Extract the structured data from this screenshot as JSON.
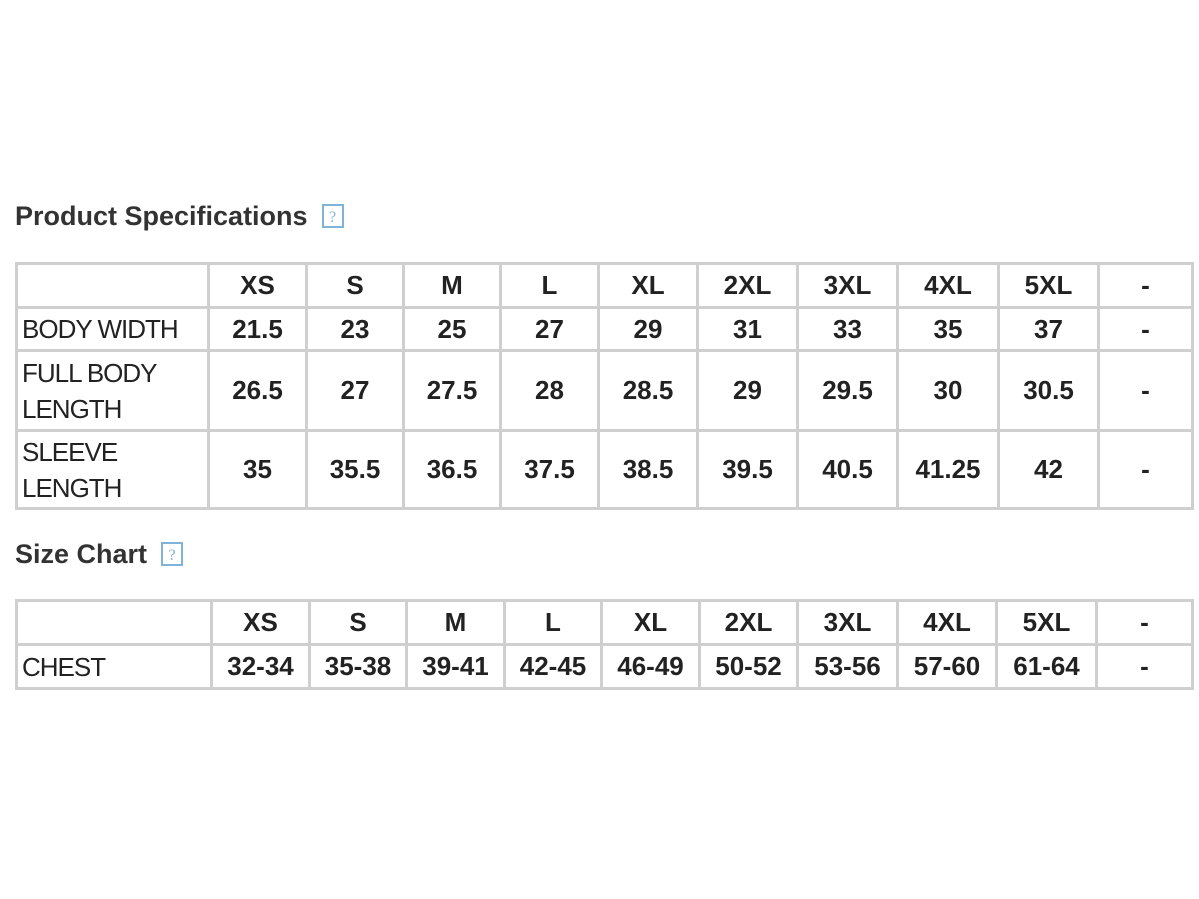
{
  "sections": [
    {
      "title": "Product Specifications",
      "help": "?",
      "table": {
        "header": [
          "XS",
          "S",
          "M",
          "L",
          "XL",
          "2XL",
          "3XL",
          "4XL",
          "5XL",
          "-"
        ],
        "rows": [
          [
            "BODY WIDTH",
            "21.5",
            "23",
            "25",
            "27",
            "29",
            "31",
            "33",
            "35",
            "37",
            "-"
          ],
          [
            "FULL BODY LENGTH",
            "26.5",
            "27",
            "27.5",
            "28",
            "28.5",
            "29",
            "29.5",
            "30",
            "30.5",
            "-"
          ],
          [
            "SLEEVE LENGTH",
            "35",
            "35.5",
            "36.5",
            "37.5",
            "38.5",
            "39.5",
            "40.5",
            "41.25",
            "42",
            "-"
          ]
        ]
      }
    },
    {
      "title": "Size Chart",
      "help": "?",
      "table": {
        "header": [
          "XS",
          "S",
          "M",
          "L",
          "XL",
          "2XL",
          "3XL",
          "4XL",
          "5XL",
          "-"
        ],
        "rows": [
          [
            "CHEST",
            "32-34",
            "35-38",
            "39-41",
            "42-45",
            "46-49",
            "50-52",
            "53-56",
            "57-60",
            "61-64",
            "-"
          ]
        ]
      }
    }
  ]
}
